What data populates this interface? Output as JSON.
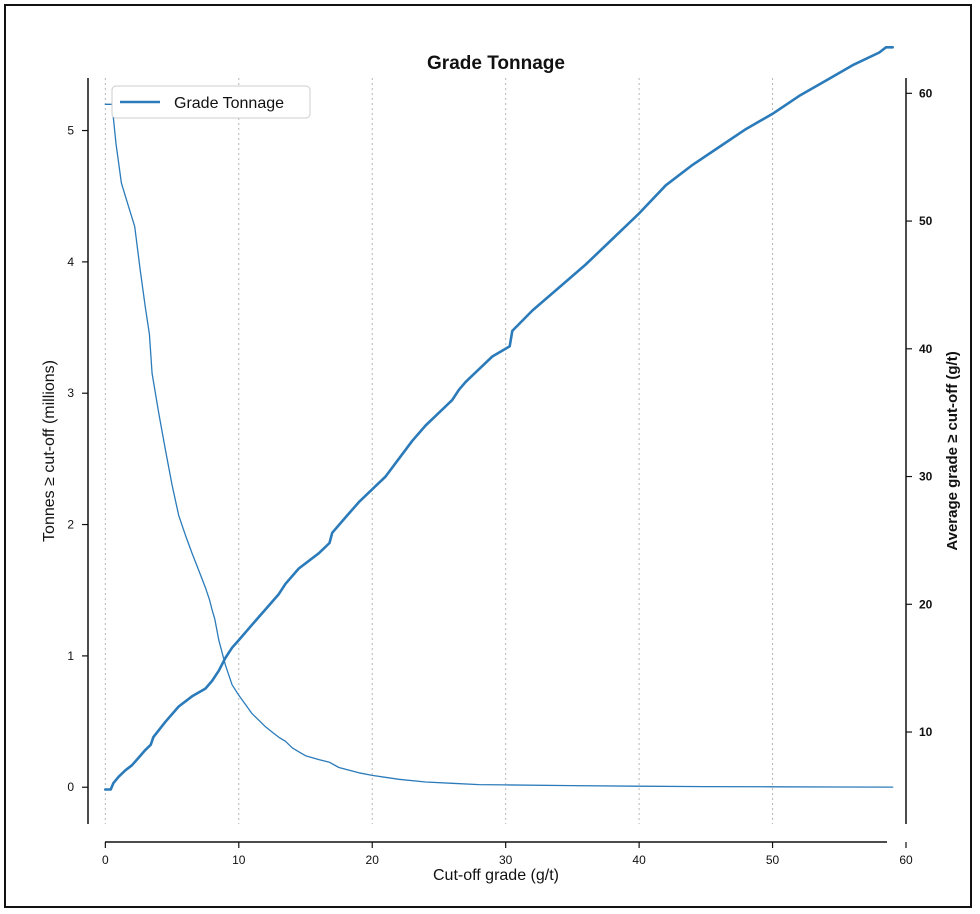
{
  "chart_data": {
    "type": "line",
    "title": "Grade Tonnage",
    "xlabel": "Cut-off grade (g/t)",
    "ylabel_left": "Tonnes ≥ cut-off (millions)",
    "ylabel_right": "Average grade ≥ cut-off (g/t)",
    "xlim": [
      -1.3,
      60
    ],
    "ylim_left": [
      -0.28,
      5.4
    ],
    "ylim_right": [
      2.8,
      61.2
    ],
    "x_ticks": [
      0,
      10,
      20,
      30,
      40,
      50,
      60
    ],
    "y_ticks_left": [
      0,
      1,
      2,
      3,
      4,
      5
    ],
    "y_ticks_right": [
      10,
      20,
      30,
      40,
      50,
      60
    ],
    "grid": "vertical dotted",
    "legend": {
      "position": "top-left",
      "entries": [
        "Grade Tonnage"
      ]
    },
    "colors": {
      "line": "#2b7bba"
    },
    "series": [
      {
        "axis": "left",
        "x": [
          0,
          0.5,
          0.8,
          1.2,
          1.8,
          2.2,
          2.6,
          3.0,
          3.3,
          3.5,
          4.0,
          4.5,
          5.0,
          5.5,
          6.0,
          6.5,
          7.0,
          7.5,
          7.8,
          8.0,
          8.2,
          8.5,
          9.0,
          9.5,
          10.0,
          10.5,
          11.0,
          11.5,
          12.0,
          12.5,
          13.0,
          13.5,
          14.0,
          14.5,
          15.0,
          16.0,
          16.8,
          17.5,
          19.0,
          20.0,
          22.0,
          24.0,
          26.0,
          28.0,
          30.0,
          35.0,
          40.0,
          45.0,
          50.0,
          55.0,
          59.0
        ],
        "y": [
          5.2,
          5.2,
          4.9,
          4.6,
          4.4,
          4.27,
          3.95,
          3.65,
          3.45,
          3.15,
          2.85,
          2.57,
          2.3,
          2.07,
          1.92,
          1.78,
          1.65,
          1.52,
          1.43,
          1.35,
          1.28,
          1.12,
          0.93,
          0.78,
          0.7,
          0.63,
          0.56,
          0.51,
          0.46,
          0.42,
          0.38,
          0.35,
          0.3,
          0.27,
          0.24,
          0.21,
          0.19,
          0.15,
          0.11,
          0.09,
          0.06,
          0.04,
          0.03,
          0.02,
          0.018,
          0.012,
          0.008,
          0.005,
          0.003,
          0.002,
          0.001
        ]
      },
      {
        "axis": "right",
        "x": [
          0,
          0.4,
          0.6,
          1.0,
          1.5,
          2.0,
          2.5,
          3.0,
          3.4,
          3.6,
          4.5,
          5.5,
          6.5,
          7.5,
          8.0,
          8.5,
          9.0,
          9.5,
          10.0,
          11.0,
          12.0,
          13.0,
          13.5,
          14.5,
          16.0,
          16.8,
          17.0,
          18.0,
          19.0,
          20.0,
          21.0,
          22.0,
          23.0,
          24.0,
          25.0,
          26.0,
          26.5,
          27.0,
          28.0,
          29.0,
          30.3,
          30.5,
          32.0,
          34.0,
          36.0,
          38.0,
          40.0,
          42.0,
          44.0,
          46.0,
          48.0,
          50.0,
          52.0,
          54.0,
          56.0,
          58.0,
          58.5,
          59.0
        ],
        "y": [
          5.5,
          5.5,
          6.0,
          6.5,
          7.0,
          7.4,
          8.0,
          8.6,
          9.0,
          9.6,
          10.8,
          12.0,
          12.8,
          13.4,
          14.0,
          14.8,
          15.8,
          16.6,
          17.2,
          18.4,
          19.6,
          20.8,
          21.6,
          22.8,
          24.0,
          24.8,
          25.6,
          26.8,
          28.0,
          29.0,
          30.0,
          31.4,
          32.8,
          34.0,
          35.0,
          36.0,
          36.8,
          37.4,
          38.4,
          39.4,
          40.2,
          41.4,
          43.0,
          44.8,
          46.6,
          48.6,
          50.6,
          52.8,
          54.4,
          55.8,
          57.2,
          58.4,
          59.8,
          61.0,
          62.2,
          63.2,
          63.6,
          63.6
        ]
      }
    ]
  }
}
